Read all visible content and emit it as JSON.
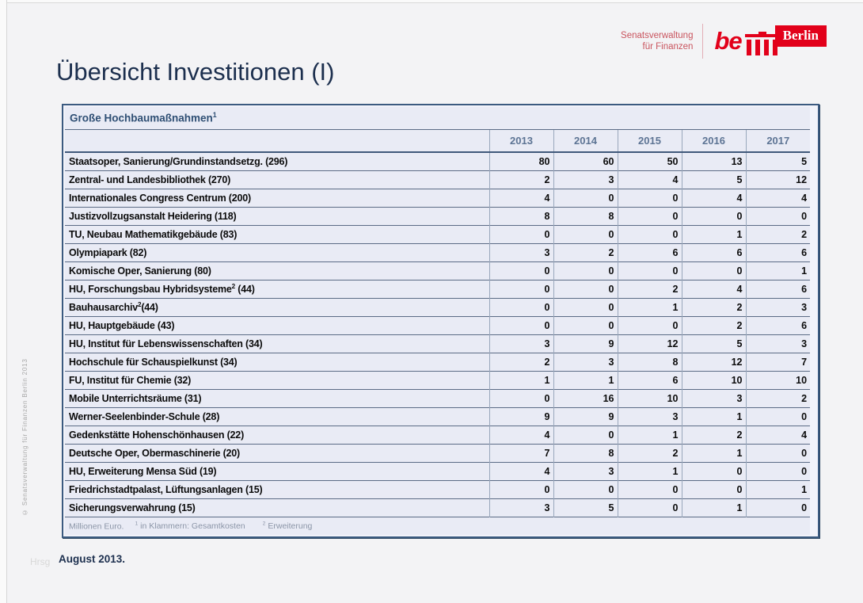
{
  "page": {
    "title": "Übersicht Investitionen (I)",
    "date_label": "August 2013.",
    "hrsg_label": "Hrsg",
    "side_copyright": "© Senatsverwaltung  für  Finanzen  Berlin 2013"
  },
  "logo": {
    "org_line1": "Senatsverwaltung",
    "org_line2": "für Finanzen",
    "be_text": "be",
    "berlin_text": "Berlin",
    "icon": "brandenburg-gate-icon",
    "berlin_red": "#e2001a",
    "org_red": "#c9545e"
  },
  "colors": {
    "title_navy": "#1c2f4e",
    "table_bg": "#e9ebf5",
    "table_border_dark": "#3b5a80",
    "row_separator": "#5b6b85",
    "column_separator": "#99a7bb",
    "year_header_text": "#5d7494",
    "footnote_gray": "#8b95a7"
  },
  "table": {
    "title": "Große Hochbaumaßnahmen",
    "title_sup": "1",
    "years": [
      "2013",
      "2014",
      "2015",
      "2016",
      "2017"
    ],
    "rows": [
      {
        "pre": "Staatsoper, Sanierung/Grundinstandsetzg. (296)",
        "sup": "",
        "post": "",
        "values": [
          80,
          60,
          50,
          13,
          5
        ]
      },
      {
        "pre": "Zentral- und Landesbibliothek (270)",
        "sup": "",
        "post": "",
        "values": [
          2,
          3,
          4,
          5,
          12
        ]
      },
      {
        "pre": "Internationales Congress Centrum (200)",
        "sup": "",
        "post": "",
        "values": [
          4,
          0,
          0,
          4,
          4
        ]
      },
      {
        "pre": "Justizvollzugsanstalt Heidering (118)",
        "sup": "",
        "post": "",
        "values": [
          8,
          8,
          0,
          0,
          0
        ]
      },
      {
        "pre": "TU, Neubau Mathematikgebäude (83)",
        "sup": "",
        "post": "",
        "values": [
          0,
          0,
          0,
          1,
          2
        ]
      },
      {
        "pre": "Olympiapark (82)",
        "sup": "",
        "post": "",
        "values": [
          3,
          2,
          6,
          6,
          6
        ]
      },
      {
        "pre": "Komische Oper, Sanierung (80)",
        "sup": "",
        "post": "",
        "values": [
          0,
          0,
          0,
          0,
          1
        ]
      },
      {
        "pre": "HU, Forschungsbau Hybridsysteme",
        "sup": "2",
        "post": " (44)",
        "values": [
          0,
          0,
          2,
          4,
          6
        ]
      },
      {
        "pre": "Bauhausarchiv",
        "sup": "2",
        "post": "(44)",
        "values": [
          0,
          0,
          1,
          2,
          3
        ]
      },
      {
        "pre": "HU, Hauptgebäude (43)",
        "sup": "",
        "post": "",
        "values": [
          0,
          0,
          0,
          2,
          6
        ]
      },
      {
        "pre": "HU, Institut für Lebenswissenschaften (34)",
        "sup": "",
        "post": "",
        "values": [
          3,
          9,
          12,
          5,
          3
        ]
      },
      {
        "pre": "Hochschule für Schauspielkunst (34)",
        "sup": "",
        "post": "",
        "values": [
          2,
          3,
          8,
          12,
          7
        ]
      },
      {
        "pre": "FU, Institut für Chemie (32)",
        "sup": "",
        "post": "",
        "values": [
          1,
          1,
          6,
          10,
          10
        ]
      },
      {
        "pre": "Mobile Unterrichtsräume (31)",
        "sup": "",
        "post": "",
        "values": [
          0,
          16,
          10,
          3,
          2
        ]
      },
      {
        "pre": "Werner-Seelenbinder-Schule (28)",
        "sup": "",
        "post": "",
        "values": [
          9,
          9,
          3,
          1,
          0
        ]
      },
      {
        "pre": "Gedenkstätte Hohenschönhausen (22)",
        "sup": "",
        "post": "",
        "values": [
          4,
          0,
          1,
          2,
          4
        ]
      },
      {
        "pre": "Deutsche Oper, Obermaschinerie (20)",
        "sup": "",
        "post": "",
        "values": [
          7,
          8,
          2,
          1,
          0
        ]
      },
      {
        "pre": "HU, Erweiterung Mensa Süd (19)",
        "sup": "",
        "post": "",
        "values": [
          4,
          3,
          1,
          0,
          0
        ]
      },
      {
        "pre": "Friedrichstadtpalast, Lüftungsanlagen (15)",
        "sup": "",
        "post": "",
        "values": [
          0,
          0,
          0,
          0,
          1
        ]
      },
      {
        "pre": "Sicherungsverwahrung (15)",
        "sup": "",
        "post": "",
        "values": [
          3,
          5,
          0,
          1,
          0
        ]
      }
    ],
    "note_unit": "Millionen Euro.",
    "note1_sup": "1",
    "note1_text": " in Klammern: Gesamtkosten",
    "note2_sup": "2",
    "note2_text": " Erweiterung"
  }
}
